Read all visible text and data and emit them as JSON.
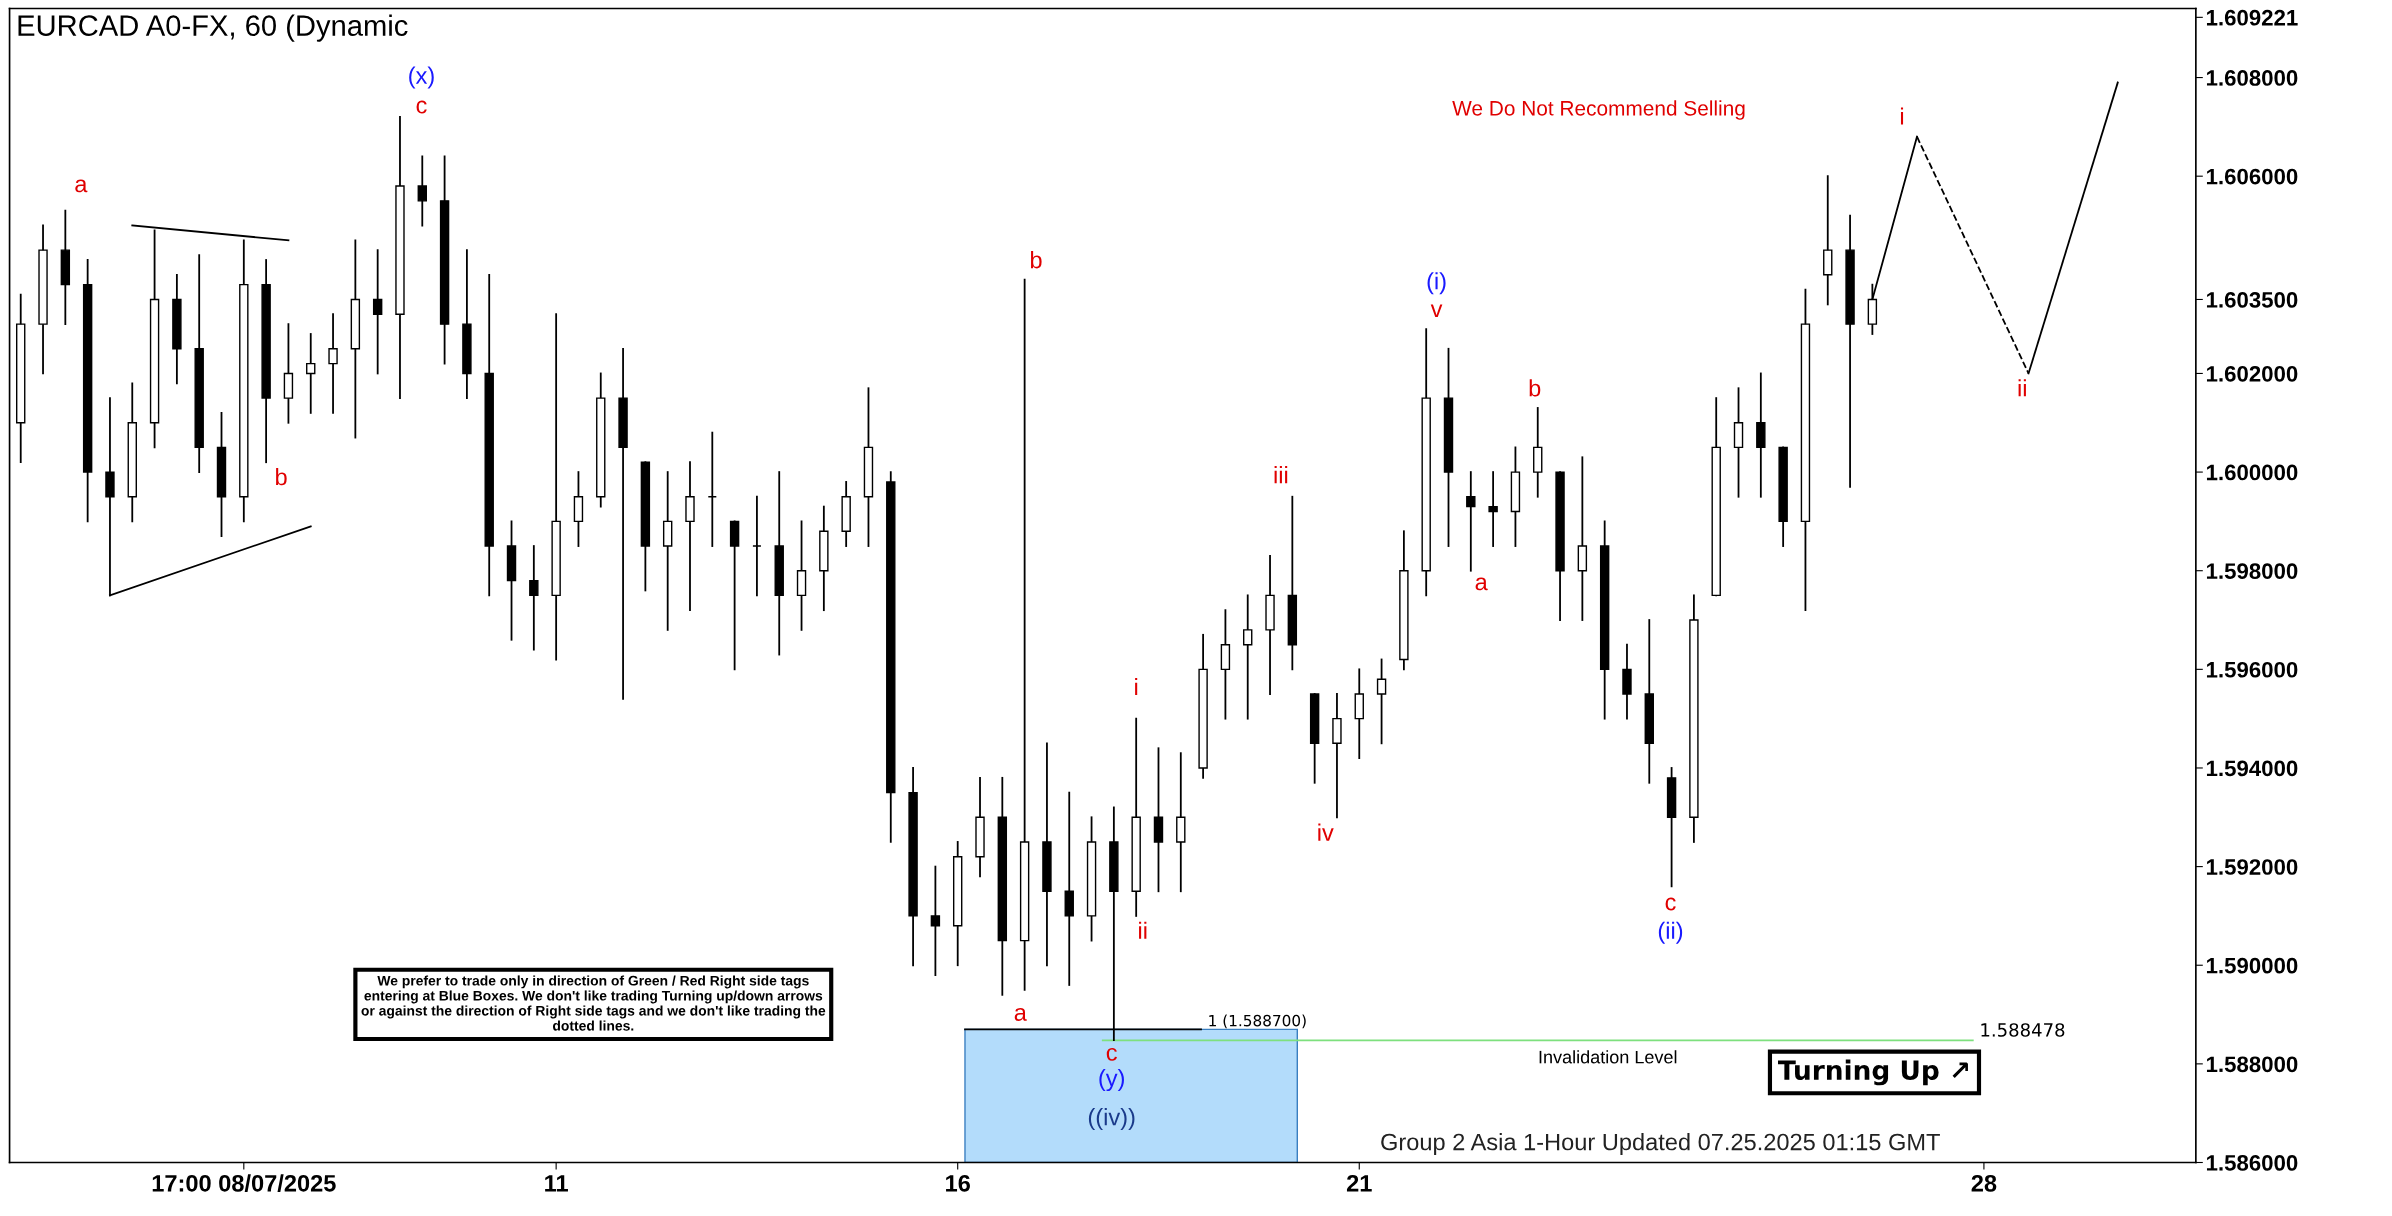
{
  "chart_data": {
    "type": "candlestick",
    "title": "EURCAD A0-FX, 60 (Dynamic",
    "categories": [
      null,
      null,
      null,
      null,
      null,
      null,
      null,
      null,
      null,
      null,
      "17:00 08/07/2025",
      null,
      null,
      null,
      null,
      null,
      null,
      null,
      null,
      null,
      null,
      null,
      null,
      null,
      "11",
      null,
      null,
      null,
      null,
      null,
      null,
      null,
      null,
      null,
      null,
      null,
      null,
      null,
      null,
      null,
      null,
      null,
      "16",
      null,
      null,
      null,
      null,
      null,
      null,
      null,
      null,
      null,
      null,
      null,
      null,
      null,
      null,
      null,
      null,
      null,
      "21",
      null,
      null,
      null,
      null,
      null,
      null,
      null,
      null,
      null,
      null,
      null,
      null,
      null,
      null,
      null,
      null,
      null,
      null,
      null,
      null,
      null,
      null,
      null,
      null,
      null,
      null,
      null,
      "28",
      null,
      null,
      null,
      null,
      null,
      null,
      null,
      null,
      null
    ],
    "ohlc": [
      [
        1.601,
        1.6036,
        1.6002,
        1.603
      ],
      [
        1.603,
        1.605,
        1.602,
        1.6045
      ],
      [
        1.6045,
        1.6053,
        1.603,
        1.6038
      ],
      [
        1.6038,
        1.6043,
        1.599,
        1.6
      ],
      [
        1.6,
        1.6015,
        1.5975,
        1.5995
      ],
      [
        1.5995,
        1.6018,
        1.599,
        1.601
      ],
      [
        1.601,
        1.6049,
        1.6005,
        1.6035
      ],
      [
        1.6035,
        1.604,
        1.6018,
        1.6025
      ],
      [
        1.6025,
        1.6044,
        1.6,
        1.6005
      ],
      [
        1.6005,
        1.6012,
        1.5987,
        1.5995
      ],
      [
        1.5995,
        1.6047,
        1.599,
        1.6038
      ],
      [
        1.6038,
        1.6043,
        1.6002,
        1.6015
      ],
      [
        1.6015,
        1.603,
        1.601,
        1.602
      ],
      [
        1.602,
        1.6028,
        1.6012,
        1.6022
      ],
      [
        1.6022,
        1.6032,
        1.6012,
        1.6025
      ],
      [
        1.6025,
        1.6047,
        1.6007,
        1.6035
      ],
      [
        1.6035,
        1.6045,
        1.602,
        1.6032
      ],
      [
        1.6032,
        1.6072,
        1.6015,
        1.6058
      ],
      [
        1.6058,
        1.6064,
        1.605,
        1.6055
      ],
      [
        1.6055,
        1.6064,
        1.6022,
        1.603
      ],
      [
        1.603,
        1.6045,
        1.6015,
        1.602
      ],
      [
        1.602,
        1.604,
        1.5975,
        1.5985
      ],
      [
        1.5985,
        1.599,
        1.5966,
        1.5978
      ],
      [
        1.5978,
        1.5985,
        1.5964,
        1.5975
      ],
      [
        1.5975,
        1.6032,
        1.5962,
        1.599
      ],
      [
        1.599,
        1.6,
        1.5985,
        1.5995
      ],
      [
        1.5995,
        1.602,
        1.5993,
        1.6015
      ],
      [
        1.6015,
        1.6025,
        1.5954,
        1.6005
      ],
      [
        1.6002,
        1.6002,
        1.5976,
        1.5985
      ],
      [
        1.5985,
        1.6,
        1.5968,
        1.599
      ],
      [
        1.599,
        1.6002,
        1.5972,
        1.5995
      ],
      [
        1.5995,
        1.6008,
        1.5985,
        1.5995
      ],
      [
        1.599,
        1.599,
        1.596,
        1.5985
      ],
      [
        1.5985,
        1.5995,
        1.5975,
        1.5985
      ],
      [
        1.5985,
        1.6,
        1.5963,
        1.5975
      ],
      [
        1.5975,
        1.599,
        1.5968,
        1.598
      ],
      [
        1.598,
        1.5993,
        1.5972,
        1.5988
      ],
      [
        1.5988,
        1.5998,
        1.5985,
        1.5995
      ],
      [
        1.5995,
        1.6017,
        1.5985,
        1.6005
      ],
      [
        1.5998,
        1.6,
        1.5925,
        1.5935
      ],
      [
        1.5935,
        1.594,
        1.59,
        1.591
      ],
      [
        1.591,
        1.592,
        1.5898,
        1.5908
      ],
      [
        1.5908,
        1.5925,
        1.59,
        1.5922
      ],
      [
        1.5922,
        1.5938,
        1.5918,
        1.593
      ],
      [
        1.593,
        1.5938,
        1.5894,
        1.5905
      ],
      [
        1.5905,
        1.6039,
        1.5895,
        1.5925
      ],
      [
        1.5925,
        1.5945,
        1.59,
        1.5915
      ],
      [
        1.5915,
        1.5935,
        1.5896,
        1.591
      ],
      [
        1.591,
        1.593,
        1.5905,
        1.5925
      ],
      [
        1.5925,
        1.5932,
        1.58848,
        1.5915
      ],
      [
        1.5915,
        1.595,
        1.591,
        1.593
      ],
      [
        1.593,
        1.5944,
        1.5915,
        1.5925
      ],
      [
        1.5925,
        1.5943,
        1.5915,
        1.593
      ],
      [
        1.594,
        1.5967,
        1.5938,
        1.596
      ],
      [
        1.596,
        1.5972,
        1.595,
        1.5965
      ],
      [
        1.5965,
        1.5975,
        1.595,
        1.5968
      ],
      [
        1.5968,
        1.5983,
        1.5955,
        1.5975
      ],
      [
        1.5975,
        1.5995,
        1.596,
        1.5965
      ],
      [
        1.5955,
        1.5955,
        1.5937,
        1.5945
      ],
      [
        1.5945,
        1.5955,
        1.593,
        1.595
      ],
      [
        1.595,
        1.596,
        1.5942,
        1.5955
      ],
      [
        1.5955,
        1.5962,
        1.5945,
        1.5958
      ],
      [
        1.5962,
        1.5988,
        1.596,
        1.598
      ],
      [
        1.598,
        1.6029,
        1.5975,
        1.6015
      ],
      [
        1.6015,
        1.6025,
        1.5985,
        1.6
      ],
      [
        1.5995,
        1.6,
        1.598,
        1.5993
      ],
      [
        1.5993,
        1.6,
        1.5985,
        1.5992
      ],
      [
        1.5992,
        1.6005,
        1.5985,
        1.6
      ],
      [
        1.6,
        1.6013,
        1.5995,
        1.6005
      ],
      [
        1.6,
        1.6,
        1.597,
        1.598
      ],
      [
        1.598,
        1.6003,
        1.597,
        1.5985
      ],
      [
        1.5985,
        1.599,
        1.595,
        1.596
      ],
      [
        1.596,
        1.5965,
        1.595,
        1.5955
      ],
      [
        1.5955,
        1.597,
        1.5937,
        1.5945
      ],
      [
        1.5938,
        1.594,
        1.5916,
        1.593
      ],
      [
        1.593,
        1.5975,
        1.5925,
        1.597
      ],
      [
        1.5975,
        1.6015,
        1.5975,
        1.6005
      ],
      [
        1.6005,
        1.6017,
        1.5995,
        1.601
      ],
      [
        1.601,
        1.602,
        1.5995,
        1.6005
      ],
      [
        1.6005,
        1.6005,
        1.5985,
        1.599
      ],
      [
        1.599,
        1.6037,
        1.5972,
        1.603
      ],
      [
        1.604,
        1.606,
        1.6034,
        1.6045
      ],
      [
        1.6045,
        1.6052,
        1.5997,
        1.603
      ],
      [
        1.603,
        1.6038,
        1.6028,
        1.6035
      ],
      null,
      null,
      null,
      null,
      null,
      null,
      null,
      null,
      null,
      null,
      null,
      null,
      null,
      null
    ],
    "color": "#000000",
    "series": [
      {
        "type": "line",
        "values": [
          null,
          null,
          null,
          null,
          null,
          1.605,
          null,
          null,
          null,
          null,
          null,
          null,
          1.6047,
          null,
          null,
          null,
          null,
          null,
          null,
          null,
          null,
          null,
          null,
          null,
          null,
          null,
          null,
          null,
          null,
          null,
          null,
          null,
          null,
          null,
          null,
          null,
          null,
          null,
          null,
          null,
          null,
          null,
          null,
          null,
          null,
          null,
          null,
          null,
          null,
          null,
          null,
          null,
          null,
          null,
          null,
          null,
          null,
          null,
          null,
          null,
          null,
          null,
          null,
          null,
          null,
          null,
          null,
          null,
          null,
          null,
          null,
          null,
          null,
          null,
          null,
          null,
          null,
          null,
          null,
          null,
          null,
          null,
          null,
          null,
          null,
          null,
          null,
          null,
          null,
          null,
          null,
          null,
          null,
          null,
          null,
          null,
          null,
          null
        ],
        "color": "#000000",
        "line_style": "solid"
      },
      {
        "type": "line",
        "values": [
          null,
          null,
          null,
          null,
          1.5975,
          null,
          null,
          null,
          null,
          null,
          null,
          null,
          null,
          1.5989,
          null,
          null,
          null,
          null,
          null,
          null,
          null,
          null,
          null,
          null,
          null,
          null,
          null,
          null,
          null,
          null,
          null,
          null,
          null,
          null,
          null,
          null,
          null,
          null,
          null,
          null,
          null,
          null,
          null,
          null,
          null,
          null,
          null,
          null,
          null,
          null,
          null,
          null,
          null,
          null,
          null,
          null,
          null,
          null,
          null,
          null,
          null,
          null,
          null,
          null,
          null,
          null,
          null,
          null,
          null,
          null,
          null,
          null,
          null,
          null,
          null,
          null,
          null,
          null,
          null,
          null,
          null,
          null,
          null,
          null,
          null,
          null,
          null,
          null,
          null,
          null,
          null,
          null,
          null,
          null,
          null,
          null,
          null,
          null
        ],
        "color": "#000000",
        "line_style": "solid"
      },
      {
        "type": "line",
        "values": [
          null,
          null,
          null,
          null,
          null,
          null,
          null,
          null,
          null,
          null,
          null,
          null,
          null,
          null,
          null,
          null,
          null,
          null,
          null,
          null,
          null,
          null,
          null,
          null,
          null,
          null,
          null,
          null,
          null,
          null,
          null,
          null,
          null,
          null,
          null,
          null,
          null,
          null,
          null,
          null,
          null,
          null,
          null,
          null,
          null,
          null,
          null,
          null,
          null,
          null,
          null,
          null,
          null,
          null,
          null,
          null,
          null,
          null,
          null,
          null,
          null,
          null,
          null,
          null,
          null,
          null,
          null,
          null,
          null,
          null,
          null,
          null,
          null,
          null,
          null,
          null,
          null,
          null,
          null,
          null,
          null,
          null,
          null,
          1.6035,
          null,
          1.6068,
          null,
          null,
          null,
          null,
          null,
          null,
          null,
          null,
          null,
          null,
          null,
          null
        ],
        "color": "#000000",
        "line_style": "solid"
      },
      {
        "type": "line",
        "values": [
          null,
          null,
          null,
          null,
          null,
          null,
          null,
          null,
          null,
          null,
          null,
          null,
          null,
          null,
          null,
          null,
          null,
          null,
          null,
          null,
          null,
          null,
          null,
          null,
          null,
          null,
          null,
          null,
          null,
          null,
          null,
          null,
          null,
          null,
          null,
          null,
          null,
          null,
          null,
          null,
          null,
          null,
          null,
          null,
          null,
          null,
          null,
          null,
          null,
          null,
          null,
          null,
          null,
          null,
          null,
          null,
          null,
          null,
          null,
          null,
          null,
          null,
          null,
          null,
          null,
          null,
          null,
          null,
          null,
          null,
          null,
          null,
          null,
          null,
          null,
          null,
          null,
          null,
          null,
          null,
          null,
          null,
          null,
          null,
          null,
          1.6068,
          null,
          null,
          null,
          null,
          1.602,
          null,
          null,
          null,
          null,
          null,
          null,
          null
        ],
        "color": "#000000",
        "line_style": "dashed"
      },
      {
        "type": "line",
        "values": [
          null,
          null,
          null,
          null,
          null,
          null,
          null,
          null,
          null,
          null,
          null,
          null,
          null,
          null,
          null,
          null,
          null,
          null,
          null,
          null,
          null,
          null,
          null,
          null,
          null,
          null,
          null,
          null,
          null,
          null,
          null,
          null,
          null,
          null,
          null,
          null,
          null,
          null,
          null,
          null,
          null,
          null,
          null,
          null,
          null,
          null,
          null,
          null,
          null,
          null,
          null,
          null,
          null,
          null,
          null,
          null,
          null,
          null,
          null,
          null,
          null,
          null,
          null,
          null,
          null,
          null,
          null,
          null,
          null,
          null,
          null,
          null,
          null,
          null,
          null,
          null,
          null,
          null,
          null,
          null,
          null,
          null,
          null,
          null,
          null,
          null,
          null,
          null,
          null,
          null,
          1.602,
          null,
          null,
          null,
          1.6079,
          null,
          null,
          null
        ],
        "color": "#000000",
        "line_style": "solid"
      }
    ],
    "ylim": [
      1.586,
      1.6094
    ],
    "yticks": [
      {
        "value": 1.586,
        "label": "1.586000"
      },
      {
        "value": 1.588,
        "label": "1.588000"
      },
      {
        "value": 1.59,
        "label": "1.590000"
      },
      {
        "value": 1.592,
        "label": "1.592000"
      },
      {
        "value": 1.594,
        "label": "1.594000"
      },
      {
        "value": 1.596,
        "label": "1.596000"
      },
      {
        "value": 1.598,
        "label": "1.598000"
      },
      {
        "value": 1.6,
        "label": "1.600000"
      },
      {
        "value": 1.602,
        "label": "1.602000"
      },
      {
        "value": 1.6035,
        "label": "1.603500"
      },
      {
        "value": 1.606,
        "label": "1.606000"
      },
      {
        "value": 1.608,
        "label": "1.608000"
      },
      {
        "value": 1.609221,
        "label": "1.609221"
      }
    ],
    "ref_lines": [
      {
        "axis": "y",
        "value": 1.588478,
        "label": "1.588478",
        "color": "#7ee07e"
      },
      {
        "axis": "y",
        "value": 1.5887,
        "label": "1 (1.588700)",
        "color": "#000000"
      }
    ],
    "bands": [
      {
        "axis": "y",
        "from": 1.586,
        "to": 1.5887,
        "color": "#b3dcfb"
      }
    ],
    "annotations": [
      "a",
      "(x)",
      "c",
      "b",
      "a",
      "b",
      "c",
      "(y)",
      "((iv))",
      "i",
      "ii",
      "iii",
      "iv",
      "(i)",
      "v",
      "a",
      "b",
      "c",
      "(ii)",
      "i",
      "ii",
      "We Do Not Recommend Selling",
      "We prefer to trade only in direction of Green / Red Right side tags entering at Blue Boxes. We don't like trading Turning up/down arrows or against the direction of Right side tags and we don't like trading the dotted lines.",
      "Invalidation Level",
      "Turning Up ↗",
      "Group 2 Asia 1-Hour Updated 07.25.2025 01:15 GMT"
    ]
  }
}
